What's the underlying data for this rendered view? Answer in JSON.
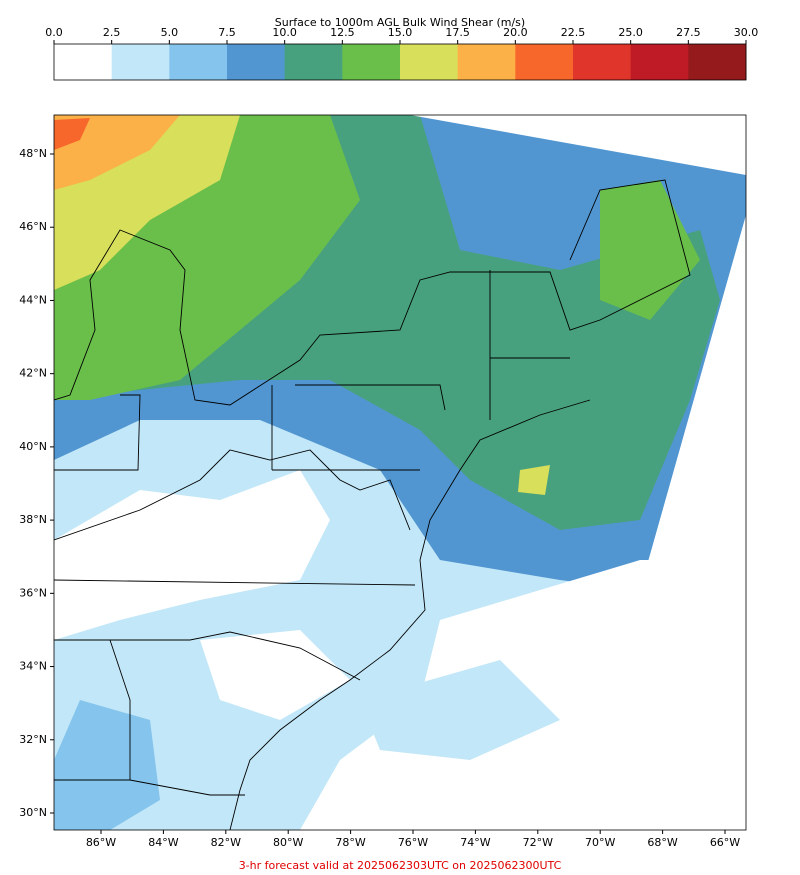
{
  "colorbar": {
    "title": "Surface to 1000m AGL Bulk Wind Shear (m/s)",
    "ticks": [
      {
        "value": 0,
        "label": "0.0"
      },
      {
        "value": 2.5,
        "label": "2.5"
      },
      {
        "value": 5,
        "label": "5.0"
      },
      {
        "value": 7.5,
        "label": "7.5"
      },
      {
        "value": 10,
        "label": "10.0"
      },
      {
        "value": 12.5,
        "label": "12.5"
      },
      {
        "value": 15,
        "label": "15.0"
      },
      {
        "value": 17.5,
        "label": "17.5"
      },
      {
        "value": 20,
        "label": "20.0"
      },
      {
        "value": 22.5,
        "label": "22.5"
      },
      {
        "value": 25,
        "label": "25.0"
      },
      {
        "value": 27.5,
        "label": "27.5"
      },
      {
        "value": 30,
        "label": "30.0"
      }
    ],
    "colors": [
      "#ffffff",
      "#c2e7f8",
      "#85c4ec",
      "#5196d1",
      "#48a17e",
      "#6abf4b",
      "#d8df5b",
      "#fbb048",
      "#f7672b",
      "#e0352a",
      "#be1b26",
      "#941a1c"
    ]
  },
  "map": {
    "lon_ticks": [
      {
        "value": -86,
        "label": "86°W"
      },
      {
        "value": -84,
        "label": "84°W"
      },
      {
        "value": -82,
        "label": "82°W"
      },
      {
        "value": -80,
        "label": "80°W"
      },
      {
        "value": -78,
        "label": "78°W"
      },
      {
        "value": -76,
        "label": "76°W"
      },
      {
        "value": -74,
        "label": "74°W"
      },
      {
        "value": -72,
        "label": "72°W"
      },
      {
        "value": -70,
        "label": "70°W"
      },
      {
        "value": -68,
        "label": "68°W"
      },
      {
        "value": -66,
        "label": "66°W"
      }
    ],
    "lat_ticks": [
      {
        "value": 48,
        "label": "48°N"
      },
      {
        "value": 46,
        "label": "46°N"
      },
      {
        "value": 44,
        "label": "44°N"
      },
      {
        "value": 42,
        "label": "42°N"
      },
      {
        "value": 40,
        "label": "40°N"
      },
      {
        "value": 38,
        "label": "38°N"
      },
      {
        "value": 36,
        "label": "36°N"
      },
      {
        "value": 34,
        "label": "34°N"
      },
      {
        "value": 32,
        "label": "32°N"
      },
      {
        "value": 30,
        "label": "30°N"
      }
    ]
  },
  "footer": "3-hr forecast valid at 2025062303UTC on 2025062300UTC"
}
